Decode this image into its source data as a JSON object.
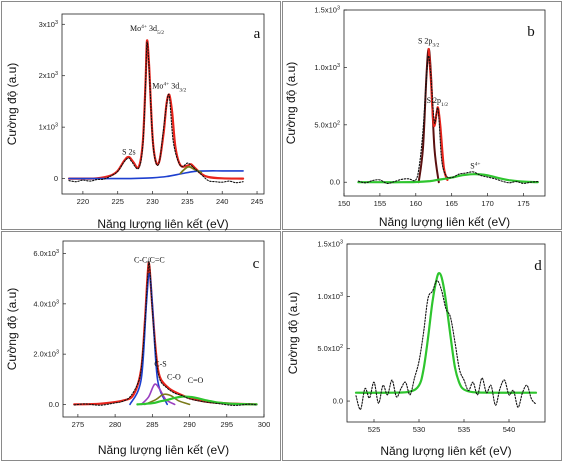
{
  "colors": {
    "fit": "#e8241c",
    "background": "#1d3fcf",
    "raw": "#111111",
    "green": "#2ec52e",
    "olive": "#7a7a1a",
    "purple": "#9a3fc0",
    "component_dark": "#5a1010"
  },
  "chart_data": [
    {
      "type": "line",
      "panel": "a",
      "xlabel": "Năng lượng liên kết (eV)",
      "ylabel": "Cường độ (a.u)",
      "xlim": [
        217,
        246
      ],
      "ylim": [
        -300,
        3200
      ],
      "xticks": [
        220,
        225,
        230,
        235,
        240,
        245
      ],
      "xtick_labels": [
        "220",
        "225",
        "230",
        "235",
        "240",
        "245"
      ],
      "yticks": [
        0,
        1000,
        2000,
        3000
      ],
      "ytick_labels": [
        "0",
        "1x10³",
        "2x10³",
        "3x10³"
      ],
      "annotations": [
        {
          "text": "S 2s",
          "x": 226.6,
          "y": 470
        },
        {
          "text": "Mo⁴⁺ 3d₅/₂",
          "x": 229.2,
          "y": 2870
        },
        {
          "text": "Mo⁴⁺ 3d₃/₂",
          "x": 232.4,
          "y": 1750
        }
      ],
      "series": [
        {
          "role": "fit",
          "x": [
            218,
            220,
            222,
            224,
            225,
            226,
            226.6,
            227.2,
            228,
            228.6,
            229,
            229.2,
            229.5,
            230,
            230.5,
            231,
            231.6,
            232,
            232.4,
            232.8,
            233.3,
            234,
            235,
            235.5,
            236,
            237,
            238,
            240,
            243
          ],
          "y": [
            0,
            0,
            5,
            60,
            150,
            360,
            420,
            330,
            220,
            700,
            1900,
            2680,
            2200,
            800,
            320,
            350,
            900,
            1450,
            1630,
            1300,
            600,
            260,
            250,
            280,
            220,
            90,
            30,
            5,
            0
          ]
        },
        {
          "role": "background",
          "x": [
            218,
            222,
            226,
            228,
            230,
            232,
            234,
            236,
            238,
            240,
            243
          ],
          "y": [
            0,
            0,
            0,
            5,
            15,
            40,
            90,
            140,
            150,
            150,
            150
          ]
        },
        {
          "role": "component",
          "x": [
            234,
            234.5,
            235.2,
            236,
            237
          ],
          "y": [
            100,
            170,
            230,
            180,
            120
          ]
        },
        {
          "role": "raw",
          "x": [
            218,
            219,
            220,
            221,
            222,
            223,
            224,
            225,
            226,
            226.6,
            227,
            228,
            228.6,
            229,
            229.2,
            229.5,
            230,
            230.5,
            231,
            231.5,
            232,
            232.4,
            233,
            234,
            235,
            235.5,
            236,
            237,
            238,
            239,
            240,
            241,
            242,
            243
          ],
          "y": [
            -40,
            -60,
            -30,
            -50,
            -20,
            -10,
            50,
            140,
            340,
            400,
            330,
            200,
            650,
            1850,
            2650,
            2150,
            780,
            300,
            340,
            880,
            1420,
            1600,
            700,
            250,
            300,
            260,
            200,
            80,
            -40,
            -60,
            -70,
            -50,
            -80,
            -60
          ]
        }
      ]
    },
    {
      "type": "line",
      "panel": "b",
      "xlabel": "Năng lượng liên kết (eV)",
      "ylabel": "Cường độ (a.u)",
      "xlim": [
        150,
        178
      ],
      "ylim": [
        -120,
        1500
      ],
      "xticks": [
        150,
        155,
        160,
        165,
        170,
        175
      ],
      "xtick_labels": [
        "150",
        "155",
        "160",
        "165",
        "170",
        "175"
      ],
      "yticks": [
        0,
        500,
        1000,
        1500
      ],
      "ytick_labels": [
        "0.0",
        "5.0x10²",
        "1.0x10³",
        "1.5x10³"
      ],
      "annotations": [
        {
          "text": "S 2p₃/₂",
          "x": 161.8,
          "y": 1210
        },
        {
          "text": "S 2p₁/₂",
          "x": 163.0,
          "y": 690
        },
        {
          "text": "S⁴⁺",
          "x": 168.3,
          "y": 120
        }
      ],
      "series": [
        {
          "role": "component_dark",
          "x": [
            160.4,
            161,
            161.5,
            161.8,
            162.1,
            162.6,
            163.2
          ],
          "y": [
            0,
            300,
            950,
            1160,
            950,
            300,
            0
          ]
        },
        {
          "role": "fit",
          "x": [
            161.8,
            162.1,
            162.5,
            162.9,
            163.1,
            163.4,
            163.9,
            164.4
          ],
          "y": [
            1160,
            900,
            500,
            600,
            650,
            500,
            130,
            20
          ]
        },
        {
          "role": "green",
          "x": [
            152,
            155,
            158,
            160,
            162,
            163,
            164,
            165,
            166,
            167,
            168,
            169,
            170,
            171,
            172,
            173,
            175,
            177
          ],
          "y": [
            0,
            0,
            0,
            2,
            10,
            20,
            30,
            40,
            55,
            65,
            70,
            68,
            60,
            45,
            30,
            18,
            5,
            0
          ]
        },
        {
          "role": "raw",
          "x": [
            152,
            153,
            154,
            155,
            156,
            157,
            158,
            159,
            160,
            160.5,
            161,
            161.5,
            161.8,
            162.1,
            162.6,
            163.1,
            163.6,
            164.2,
            165,
            166,
            167,
            168,
            169,
            170,
            171,
            172,
            173,
            174,
            175,
            176,
            177
          ],
          "y": [
            10,
            -5,
            15,
            20,
            -10,
            5,
            25,
            30,
            20,
            150,
            450,
            920,
            1100,
            920,
            520,
            640,
            200,
            60,
            40,
            70,
            80,
            90,
            60,
            45,
            30,
            10,
            -5,
            5,
            -10,
            0,
            5
          ]
        }
      ]
    },
    {
      "type": "line",
      "panel": "c",
      "xlabel": "Năng lượng liên kết (eV)",
      "ylabel": "Cường độ (a.u)",
      "xlim": [
        273,
        300
      ],
      "ylim": [
        -500,
        6500
      ],
      "xticks": [
        275,
        280,
        285,
        290,
        295,
        300
      ],
      "xtick_labels": [
        "275",
        "280",
        "285",
        "290",
        "295",
        "300"
      ],
      "yticks": [
        0,
        2000,
        4000,
        6000
      ],
      "ytick_labels": [
        "0.0",
        "2.0x10³",
        "4.0x10³",
        "6.0x10³"
      ],
      "annotations": [
        {
          "text": "C-C/C=C",
          "x": 284.6,
          "y": 5650
        },
        {
          "text": "C-S",
          "x": 286.1,
          "y": 1500
        },
        {
          "text": "C-O",
          "x": 287.9,
          "y": 1000
        },
        {
          "text": "C=O",
          "x": 290.8,
          "y": 850
        }
      ],
      "series": [
        {
          "role": "fit",
          "x": [
            274.5,
            278,
            281,
            282.5,
            283.5,
            284,
            284.4,
            284.6,
            285,
            285.5,
            286,
            287,
            288,
            290,
            292,
            295,
            299
          ],
          "y": [
            0,
            30,
            150,
            400,
            1400,
            3300,
            5300,
            5500,
            3900,
            2000,
            1100,
            700,
            500,
            250,
            120,
            40,
            0
          ]
        },
        {
          "role": "background",
          "x": [
            282,
            283.5,
            284.2,
            284.6,
            285,
            285.7,
            287
          ],
          "y": [
            0,
            1000,
            4000,
            5200,
            4000,
            1000,
            0
          ]
        },
        {
          "role": "purple",
          "x": [
            283.5,
            284.5,
            285.3,
            286,
            286.8,
            288
          ],
          "y": [
            0,
            300,
            800,
            600,
            200,
            0
          ]
        },
        {
          "role": "olive",
          "x": [
            284,
            285.5,
            286.5,
            287.5,
            288.5,
            290
          ],
          "y": [
            0,
            200,
            400,
            350,
            150,
            0
          ]
        },
        {
          "role": "green",
          "x": [
            283,
            285,
            286,
            287,
            288,
            289,
            290,
            291,
            292,
            293,
            294,
            296,
            299
          ],
          "y": [
            0,
            50,
            120,
            180,
            260,
            310,
            300,
            250,
            180,
            120,
            70,
            20,
            0
          ]
        },
        {
          "role": "raw",
          "x": [
            274.5,
            276,
            278,
            280,
            281,
            282,
            283,
            283.5,
            284,
            284.4,
            284.6,
            285,
            285.5,
            286,
            287,
            288,
            289,
            290,
            292,
            294,
            296,
            298,
            299
          ],
          "y": [
            -20,
            20,
            -30,
            60,
            120,
            300,
            800,
            1400,
            3200,
            5200,
            5600,
            3800,
            1900,
            1000,
            650,
            450,
            350,
            220,
            100,
            30,
            -40,
            10,
            -20
          ]
        }
      ]
    },
    {
      "type": "line",
      "panel": "d",
      "xlabel": "Năng lượng liên kết (eV)",
      "ylabel": "Cường độ (a.u)",
      "xlim": [
        522,
        544
      ],
      "ylim": [
        -200,
        1500
      ],
      "xticks": [
        525,
        530,
        535,
        540
      ],
      "xtick_labels": [
        "525",
        "530",
        "535",
        "540"
      ],
      "yticks": [
        0,
        500,
        1000,
        1500
      ],
      "ytick_labels": [
        "0.0",
        "5.0x10²",
        "1.0x10³",
        "1.5x10³"
      ],
      "series": [
        {
          "role": "green",
          "x": [
            523,
            527,
            529,
            530,
            530.5,
            531,
            531.5,
            532,
            532.3,
            532.6,
            533,
            533.5,
            534,
            534.5,
            535,
            536,
            538,
            543
          ],
          "y": [
            80,
            80,
            90,
            150,
            300,
            600,
            950,
            1180,
            1220,
            1150,
            950,
            620,
            320,
            170,
            110,
            85,
            80,
            80
          ]
        },
        {
          "role": "raw",
          "x": [
            523,
            523.5,
            524,
            524.5,
            525,
            525.5,
            526,
            526.5,
            527,
            527.5,
            528,
            528.5,
            529,
            529.5,
            530,
            530.5,
            531,
            531.5,
            532,
            532.5,
            533,
            533.5,
            534,
            534.5,
            535,
            535.5,
            536,
            536.5,
            537,
            537.5,
            538,
            538.5,
            539,
            539.5,
            540,
            540.5,
            541,
            541.5,
            542,
            542.5,
            543
          ],
          "y": [
            50,
            -80,
            120,
            30,
            180,
            -20,
            150,
            60,
            200,
            40,
            120,
            180,
            60,
            220,
            380,
            650,
            980,
            1050,
            1150,
            1060,
            880,
            800,
            560,
            300,
            200,
            100,
            180,
            60,
            220,
            80,
            150,
            -40,
            120,
            200,
            60,
            100,
            -60,
            80,
            150,
            20,
            -30
          ]
        }
      ]
    }
  ],
  "panels": [
    {
      "letter": "a"
    },
    {
      "letter": "b"
    },
    {
      "letter": "c"
    },
    {
      "letter": "d"
    }
  ]
}
